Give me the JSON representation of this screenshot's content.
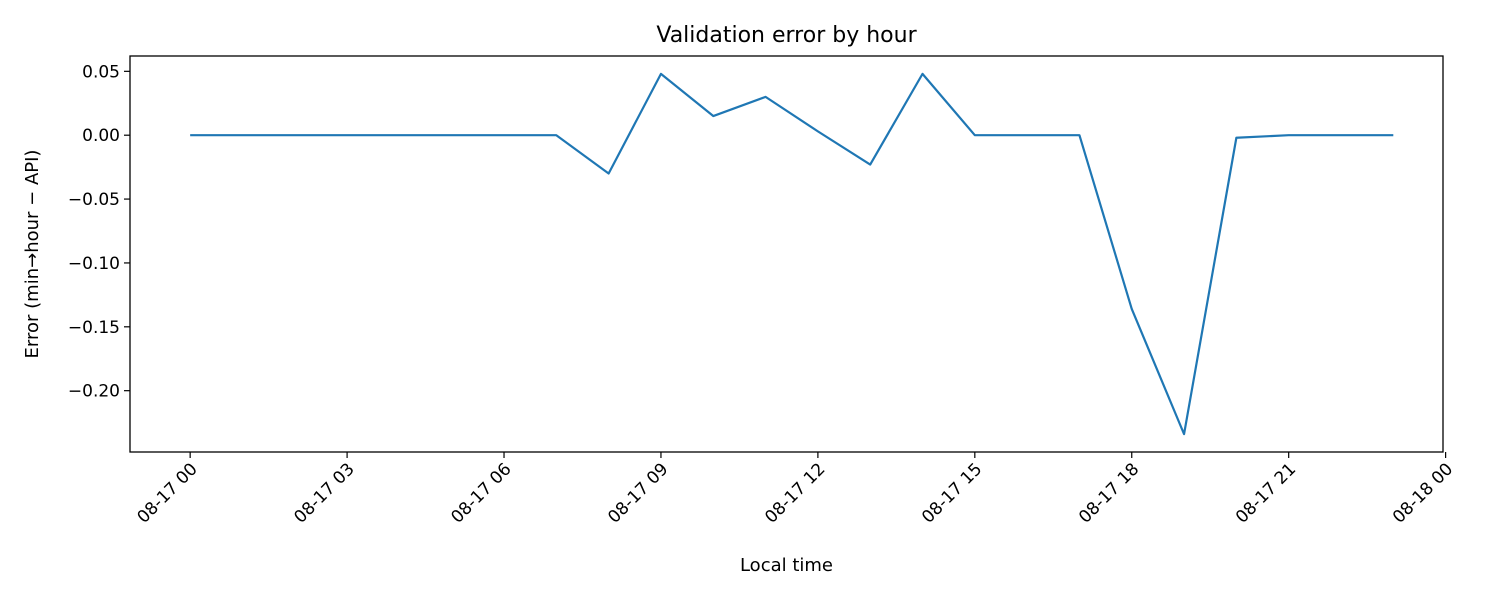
{
  "chart_data": {
    "type": "line",
    "title": "Validation error by hour",
    "xlabel": "Local time",
    "ylabel": "Error (min→hour − API)",
    "x": [
      "08-17 00",
      "08-17 01",
      "08-17 02",
      "08-17 03",
      "08-17 04",
      "08-17 05",
      "08-17 06",
      "08-17 07",
      "08-17 08",
      "08-17 09",
      "08-17 10",
      "08-17 11",
      "08-17 12",
      "08-17 13",
      "08-17 14",
      "08-17 15",
      "08-17 16",
      "08-17 17",
      "08-17 18",
      "08-17 19",
      "08-17 20",
      "08-17 21",
      "08-17 22",
      "08-17 23"
    ],
    "series": [
      {
        "color": "#1f77b4",
        "values": [
          0.0,
          0.0,
          0.0,
          0.0,
          0.0,
          0.0,
          0.0,
          0.0,
          -0.03,
          0.048,
          0.015,
          0.03,
          0.003,
          -0.023,
          0.048,
          0.0,
          0.0,
          0.0,
          -0.136,
          -0.234,
          -0.002,
          0.0,
          0.0,
          0.0
        ]
      }
    ],
    "xticks": [
      "08-17 00",
      "08-17 03",
      "08-17 06",
      "08-17 09",
      "08-17 12",
      "08-17 15",
      "08-17 18",
      "08-17 21",
      "08-18 00"
    ],
    "yticks": [
      "−0.20",
      "−0.15",
      "−0.10",
      "−0.05",
      "0.00",
      "0.05"
    ],
    "ytick_values": [
      -0.2,
      -0.15,
      -0.1,
      -0.05,
      0.0,
      0.05
    ],
    "xlim_hours": [
      -1.15,
      23.95
    ],
    "ylim": [
      -0.248,
      0.062
    ],
    "grid": false,
    "legend": "none"
  }
}
